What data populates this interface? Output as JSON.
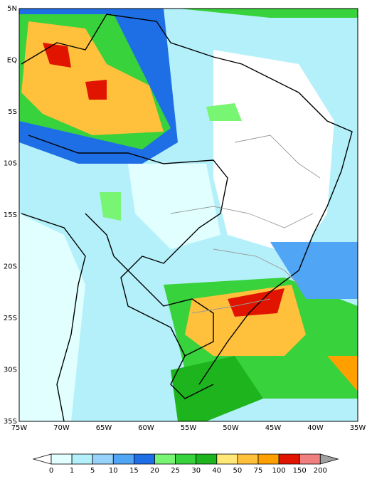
{
  "map": {
    "lat_labels": [
      "5N",
      "EQ",
      "5S",
      "10S",
      "15S",
      "20S",
      "25S",
      "30S",
      "35S"
    ],
    "lon_labels": [
      "75W",
      "70W",
      "65W",
      "60W",
      "55W",
      "50W",
      "45W",
      "40W",
      "35W"
    ],
    "legend": {
      "levels": [
        0,
        1,
        5,
        10,
        15,
        20,
        25,
        30,
        40,
        50,
        75,
        100,
        150,
        200
      ],
      "colors": [
        "#ffffff",
        "#e1ffff",
        "#b4f0fa",
        "#96d2fa",
        "#50a5f5",
        "#1e6ee6",
        "#78f573",
        "#37d23c",
        "#1eb41e",
        "#ffe878",
        "#ffc03c",
        "#ffa000",
        "#e11400",
        "#f08080",
        "#a0a0a0"
      ]
    }
  }
}
